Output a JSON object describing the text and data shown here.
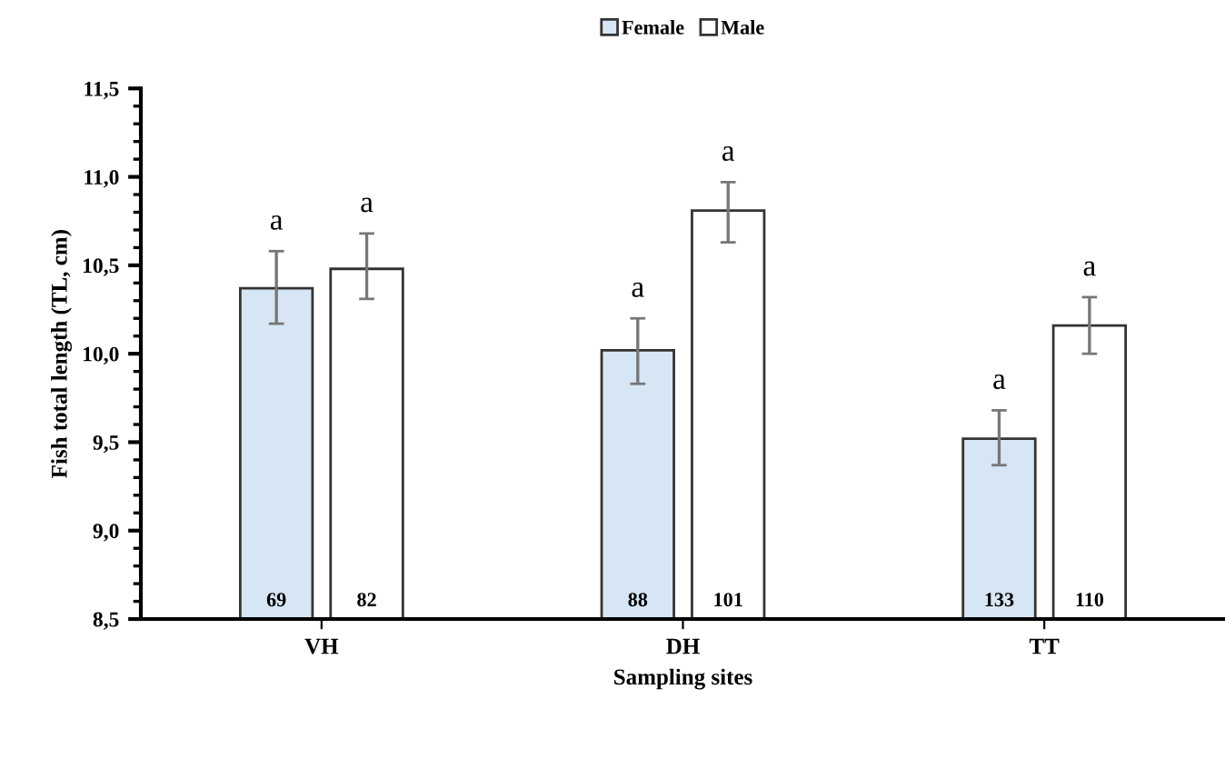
{
  "chart_data": {
    "type": "bar",
    "xlabel": "Sampling sites",
    "ylabel": "Fish total length (TL, cm)",
    "categories": [
      "VH",
      "DH",
      "TT"
    ],
    "series": [
      {
        "name": "Female",
        "color": "#d6e6f4",
        "values": [
          10.37,
          10.02,
          9.52
        ],
        "errors": [
          [
            10.17,
            10.58
          ],
          [
            9.83,
            10.2
          ],
          [
            9.37,
            9.68
          ]
        ]
      },
      {
        "name": "Male",
        "color": "#ffffff",
        "values": [
          10.48,
          10.81,
          10.16
        ],
        "errors": [
          [
            10.31,
            10.68
          ],
          [
            10.63,
            10.97
          ],
          [
            10.0,
            10.32
          ]
        ]
      }
    ],
    "ylim": [
      8.5,
      11.5
    ],
    "yticks": [
      {
        "value": 8.5,
        "label": "8,5"
      },
      {
        "value": 9.0,
        "label": "9,0"
      },
      {
        "value": 9.5,
        "label": "9,5"
      },
      {
        "value": 10.0,
        "label": "10,0"
      },
      {
        "value": 10.5,
        "label": "10,5"
      },
      {
        "value": 11.0,
        "label": "11,0"
      },
      {
        "value": 11.5,
        "label": "11,5"
      }
    ],
    "annotations": [
      "a",
      "a",
      "a",
      "a",
      "a",
      "a",
      "69",
      "82",
      "88",
      "101",
      "133",
      "110"
    ],
    "legend": "top",
    "grid": false
  }
}
